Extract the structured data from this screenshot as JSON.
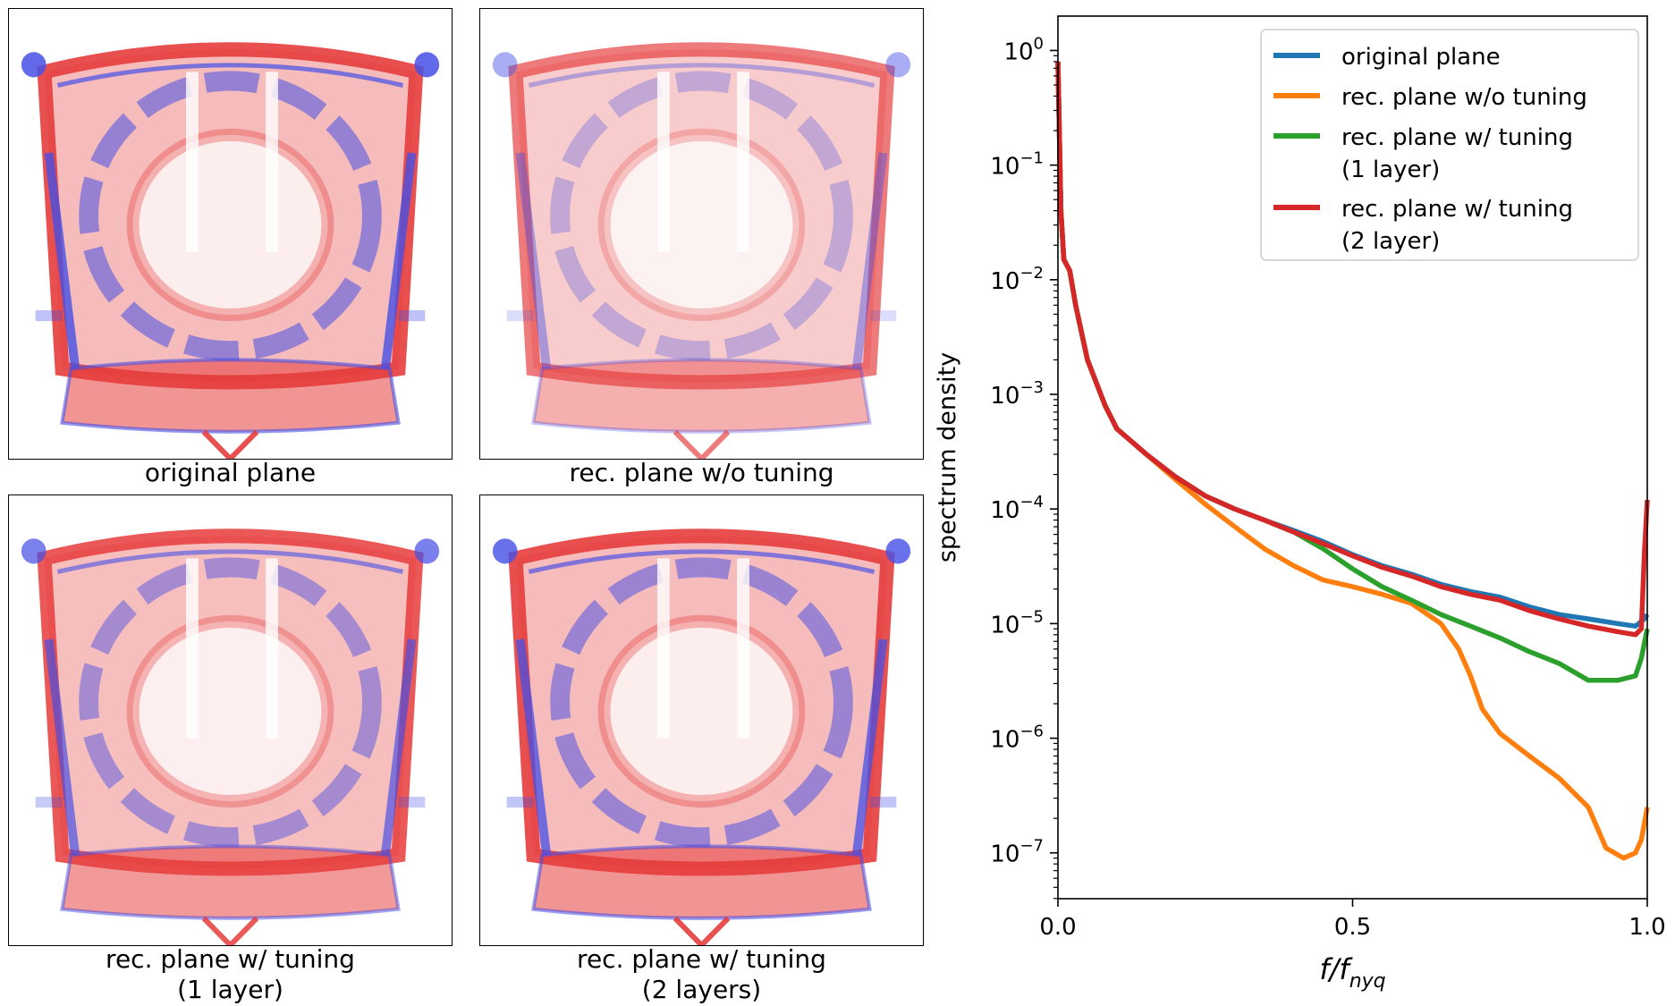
{
  "panels": [
    {
      "caption": [
        "original plane"
      ],
      "blue_strength": 1.0,
      "red_strength": 1.0
    },
    {
      "caption": [
        "rec. plane w/o tuning"
      ],
      "blue_strength": 0.55,
      "red_strength": 0.75
    },
    {
      "caption": [
        "rec. plane w/ tuning",
        "(1 layer)"
      ],
      "blue_strength": 0.85,
      "red_strength": 0.95
    },
    {
      "caption": [
        "rec. plane w/ tuning",
        "(2 layers)"
      ],
      "blue_strength": 0.95,
      "red_strength": 1.0
    }
  ],
  "chart_data": {
    "type": "line",
    "title": "",
    "xlabel": "f/f",
    "xlabel_sub": "nyq",
    "ylabel": "spectrum density",
    "xlim": [
      0.0,
      1.0
    ],
    "ylim_log10": [
      -7.4,
      0.3
    ],
    "xticks": [
      0.0,
      0.5,
      1.0
    ],
    "xtick_labels": [
      "0.0",
      "0.5",
      "1.0"
    ],
    "yticks_exp": [
      0,
      -1,
      -2,
      -3,
      -4,
      -5,
      -6,
      -7
    ],
    "ytick_base": "10",
    "grid": false,
    "legend_position": "top-right",
    "series": [
      {
        "name": "original plane",
        "color": "#1f77b4",
        "x": [
          0.0,
          0.005,
          0.01,
          0.02,
          0.03,
          0.05,
          0.08,
          0.1,
          0.15,
          0.2,
          0.25,
          0.3,
          0.35,
          0.4,
          0.45,
          0.5,
          0.55,
          0.6,
          0.65,
          0.7,
          0.75,
          0.8,
          0.85,
          0.9,
          0.95,
          0.98,
          0.995,
          1.0
        ],
        "y": [
          0.8,
          0.04,
          0.015,
          0.012,
          0.006,
          0.002,
          0.0008,
          0.0005,
          0.0003,
          0.00019,
          0.00013,
          0.0001,
          8e-05,
          6.5e-05,
          5.2e-05,
          4e-05,
          3.2e-05,
          2.7e-05,
          2.2e-05,
          1.9e-05,
          1.7e-05,
          1.4e-05,
          1.2e-05,
          1.1e-05,
          1e-05,
          9.5e-06,
          1.1e-05,
          1.2e-05
        ]
      },
      {
        "name": "rec. plane w/o tuning",
        "color": "#ff7f0e",
        "x": [
          0.0,
          0.005,
          0.01,
          0.02,
          0.03,
          0.05,
          0.08,
          0.1,
          0.15,
          0.2,
          0.25,
          0.3,
          0.35,
          0.4,
          0.45,
          0.5,
          0.55,
          0.6,
          0.65,
          0.68,
          0.7,
          0.72,
          0.75,
          0.8,
          0.85,
          0.9,
          0.93,
          0.96,
          0.98,
          0.99,
          1.0
        ],
        "y": [
          0.8,
          0.04,
          0.015,
          0.012,
          0.006,
          0.002,
          0.0008,
          0.0005,
          0.0003,
          0.00018,
          0.00011,
          7e-05,
          4.5e-05,
          3.2e-05,
          2.4e-05,
          2.1e-05,
          1.8e-05,
          1.5e-05,
          1e-05,
          6e-06,
          3.5e-06,
          1.8e-06,
          1.1e-06,
          7e-07,
          4.5e-07,
          2.5e-07,
          1.1e-07,
          9e-08,
          1e-07,
          1.3e-07,
          2.5e-07
        ]
      },
      {
        "name": "rec. plane w/ tuning\n (1 layer)",
        "color": "#2ca02c",
        "x": [
          0.0,
          0.005,
          0.01,
          0.02,
          0.03,
          0.05,
          0.08,
          0.1,
          0.15,
          0.2,
          0.25,
          0.3,
          0.35,
          0.4,
          0.45,
          0.5,
          0.55,
          0.6,
          0.65,
          0.7,
          0.75,
          0.8,
          0.85,
          0.9,
          0.95,
          0.98,
          0.99,
          1.0
        ],
        "y": [
          0.8,
          0.04,
          0.015,
          0.012,
          0.006,
          0.002,
          0.0008,
          0.0005,
          0.0003,
          0.00019,
          0.00013,
          0.0001,
          8e-05,
          6.3e-05,
          4.5e-05,
          3e-05,
          2.1e-05,
          1.6e-05,
          1.2e-05,
          9.5e-06,
          7.5e-06,
          5.7e-06,
          4.5e-06,
          3.2e-06,
          3.2e-06,
          3.5e-06,
          5e-06,
          9e-06
        ]
      },
      {
        "name": "rec. plane w/ tuning\n (2 layer)",
        "color": "#d62728",
        "x": [
          0.0,
          0.005,
          0.01,
          0.02,
          0.03,
          0.05,
          0.08,
          0.1,
          0.15,
          0.2,
          0.25,
          0.3,
          0.35,
          0.4,
          0.45,
          0.5,
          0.55,
          0.6,
          0.65,
          0.7,
          0.75,
          0.8,
          0.85,
          0.9,
          0.95,
          0.98,
          0.99,
          0.995,
          1.0
        ],
        "y": [
          0.8,
          0.04,
          0.015,
          0.012,
          0.006,
          0.002,
          0.0008,
          0.0005,
          0.0003,
          0.00019,
          0.00013,
          0.0001,
          8e-05,
          6.3e-05,
          5e-05,
          3.9e-05,
          3.1e-05,
          2.6e-05,
          2.1e-05,
          1.8e-05,
          1.6e-05,
          1.3e-05,
          1.1e-05,
          9.5e-06,
          8.5e-06,
          8e-06,
          9e-06,
          4e-05,
          0.00012
        ]
      }
    ]
  }
}
